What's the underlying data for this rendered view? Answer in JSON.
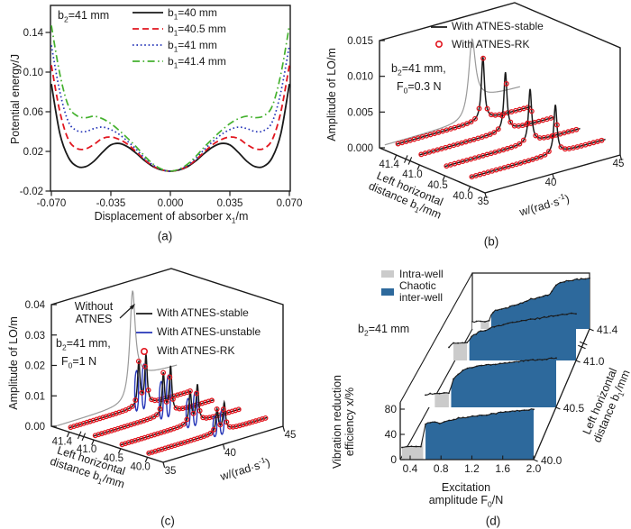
{
  "chart_data": {
    "type": [
      "line",
      "waterfall-3d",
      "waterfall-3d",
      "area-3d"
    ],
    "panels": {
      "a": {
        "label": "(a)",
        "annotation": "b_2_=41 mm",
        "y_title": "Potential energy/J",
        "x_title": "Displacement of absorber x_1_/m",
        "x_ticks": [
          "-0.070",
          "-0.035",
          "0.000",
          "0.035",
          "0.070"
        ],
        "x_tick_values": [
          -0.07,
          -0.035,
          0,
          0.035,
          0.07
        ],
        "y_ticks": [
          "-0.02",
          "0.02",
          "0.06",
          "0.10",
          "0.14"
        ],
        "y_tick_values": [
          -0.02,
          0.02,
          0.06,
          0.1,
          0.14
        ],
        "x_range": [
          -0.07,
          0.07
        ],
        "y_range": [
          -0.02,
          0.167
        ],
        "x_step": 0.005,
        "series": [
          {
            "label": "b_1_=40 mm",
            "color": "#1a1a1a",
            "dash": "",
            "width": 1.8,
            "half_values": [
              0,
              0.0012,
              0.0045,
              0.0105,
              0.018,
              0.0245,
              0.028,
              0.0265,
              0.019,
              0.01,
              0.0045,
              0.005,
              0.014,
              0.038,
              0.088
            ]
          },
          {
            "label": "b_1_=40.5 mm",
            "color": "#e1161f",
            "dash": "7 4",
            "width": 1.8,
            "half_values": [
              0,
              0.0014,
              0.005,
              0.0115,
              0.0195,
              0.027,
              0.032,
              0.0345,
              0.033,
              0.027,
              0.0225,
              0.023,
              0.032,
              0.06,
              0.107
            ]
          },
          {
            "label": "b_1_=41 mm",
            "color": "#2636b8",
            "dash": "1.6 2.8",
            "width": 1.7,
            "half_values": [
              0,
              0.0016,
              0.006,
              0.013,
              0.022,
              0.03,
              0.037,
              0.042,
              0.0445,
              0.043,
              0.04,
              0.041,
              0.05,
              0.08,
              0.127
            ]
          },
          {
            "label": "b_1_=41.4 mm",
            "color": "#44b12e",
            "dash": "8 3.5 1.6 3.5",
            "width": 1.7,
            "half_values": [
              0,
              0.002,
              0.007,
              0.015,
              0.0245,
              0.033,
              0.041,
              0.048,
              0.053,
              0.0555,
              0.054,
              0.056,
              0.066,
              0.098,
              0.147
            ]
          }
        ]
      },
      "b": {
        "label": "(b)",
        "annotation_lines": [
          "b_2_=41 mm,",
          "F_0_=0.3 N"
        ],
        "y_title": "Amplitude of LO/m",
        "x_title": "w/(rad·s^-1^)",
        "depth_title_lines": [
          "Left horizontal",
          "distance b_1_/mm"
        ],
        "y_ticks": [
          "0.000",
          "0.005",
          "0.010",
          "0.015"
        ],
        "y_tick_values": [
          0,
          0.005,
          0.01,
          0.015
        ],
        "w_ticks": [
          "35",
          "40",
          "45"
        ],
        "w_range": [
          35,
          45
        ],
        "b1_ticks": [
          "40.0",
          "40.5",
          "41.0",
          "41.4"
        ],
        "b1_tick_t": [
          0.14,
          0.38,
          0.62,
          0.84
        ],
        "legend": [
          {
            "label": "With ATNES-stable",
            "type": "line",
            "color": "#1a1a1a"
          },
          {
            "label": "With ATNES-RK",
            "type": "circle",
            "color": "#e1161f"
          }
        ],
        "marker_dw": 0.3,
        "gray_reference": {
          "t": 0.95,
          "w0": 41.45,
          "a": 0.01,
          "g": 0.3,
          "base": 0.0007,
          "tail": 0.0028,
          "color": "#999999"
        },
        "series": [
          {
            "b1": "40.0",
            "t": 0.14,
            "base": 0.0013,
            "peaks": [
              {
                "w0": 41.3,
                "a": 0.0068,
                "g": 0.14
              }
            ]
          },
          {
            "b1": "40.5",
            "t": 0.38,
            "base": 0.0013,
            "peaks": [
              {
                "w0": 41.3,
                "a": 0.0075,
                "g": 0.14
              }
            ]
          },
          {
            "b1": "41.0",
            "t": 0.62,
            "base": 0.0014,
            "peaks": [
              {
                "w0": 41.35,
                "a": 0.0082,
                "g": 0.14
              }
            ]
          },
          {
            "b1": "41.4",
            "t": 0.84,
            "base": 0.0015,
            "peaks": [
              {
                "w0": 41.4,
                "a": 0.0088,
                "g": 0.14
              }
            ]
          }
        ]
      },
      "c": {
        "label": "(c)",
        "annotation_lines": [
          "b_2_=41 mm,",
          "F_0_=1 N"
        ],
        "pointer_lines": [
          "Without",
          "ATNES"
        ],
        "y_title": "Amplitude of LO/m",
        "x_title": "w/(rad·s^-1^)",
        "depth_title_lines": [
          "Left horizontal",
          "distance b_1_/mm"
        ],
        "y_ticks": [
          "0.00",
          "0.01",
          "0.02",
          "0.03",
          "0.04"
        ],
        "y_tick_values": [
          0,
          0.01,
          0.02,
          0.03,
          0.04
        ],
        "w_ticks": [
          "35",
          "40",
          "45"
        ],
        "w_range": [
          35,
          45
        ],
        "b1_ticks": [
          "40.0",
          "40.5",
          "41.0",
          "41.4"
        ],
        "b1_tick_t": [
          0.14,
          0.38,
          0.62,
          0.84
        ],
        "legend": [
          {
            "label": "With ATNES-stable",
            "type": "line",
            "color": "#1a1a1a"
          },
          {
            "label": "With ATNES-unstable",
            "type": "line",
            "color": "#2636b8"
          },
          {
            "label": "With ATNES-RK",
            "type": "circle",
            "color": "#e1161f"
          }
        ],
        "marker_dw": 0.27,
        "loop_color": "#2636b8",
        "gray_reference": {
          "t": 0.95,
          "w0": 41.3,
          "a": 0.033,
          "g": 0.27,
          "base": 0.0007,
          "tail": 0.008,
          "color": "#999999"
        },
        "series": [
          {
            "b1": "40.0",
            "t": 0.14,
            "base": 0.0012,
            "peaks": [
              {
                "w0": 40.8,
                "a": 0.0075,
                "g": 0.12
              },
              {
                "w0": 41.4,
                "a": 0.009,
                "g": 0.12
              }
            ],
            "loops": [
              {
                "w0": 40.62,
                "a": 0.007
              },
              {
                "w0": 41.22,
                "a": 0.0085
              }
            ]
          },
          {
            "b1": "40.5",
            "t": 0.38,
            "base": 0.0012,
            "peaks": [
              {
                "w0": 40.8,
                "a": 0.0105,
                "g": 0.12
              },
              {
                "w0": 41.4,
                "a": 0.012,
                "g": 0.12
              }
            ],
            "loops": [
              {
                "w0": 40.62,
                "a": 0.01
              },
              {
                "w0": 41.22,
                "a": 0.0115
              }
            ]
          },
          {
            "b1": "41.0",
            "t": 0.62,
            "base": 0.0013,
            "peaks": [
              {
                "w0": 40.8,
                "a": 0.0135,
                "g": 0.12
              },
              {
                "w0": 41.4,
                "a": 0.015,
                "g": 0.12
              }
            ],
            "loops": [
              {
                "w0": 40.62,
                "a": 0.0128
              },
              {
                "w0": 41.22,
                "a": 0.0142
              }
            ]
          },
          {
            "b1": "41.4",
            "t": 0.84,
            "base": 0.0014,
            "peaks": [
              {
                "w0": 40.8,
                "a": 0.0145,
                "g": 0.12
              },
              {
                "w0": 41.4,
                "a": 0.016,
                "g": 0.12
              }
            ],
            "loops": [
              {
                "w0": 40.62,
                "a": 0.0138
              },
              {
                "w0": 41.22,
                "a": 0.0152
              }
            ]
          }
        ]
      },
      "d": {
        "label": "(d)",
        "annotation": "b_2_=41 mm",
        "y_title_lines": [
          "Vibration reduction",
          "efficiency x/%"
        ],
        "x_title_lines": [
          "Excitation",
          "amplitude F_0_/N"
        ],
        "depth_title_lines": [
          "Left horizontal",
          "distance b_1_/mm"
        ],
        "x_ticks": [
          "0.4",
          "0.8",
          "1.2",
          "1.6",
          "2.0"
        ],
        "x_tick_values": [
          0.4,
          0.8,
          1.2,
          1.6,
          2.0
        ],
        "y_ticks": [
          "0",
          "40",
          "80"
        ],
        "y_tick_values": [
          0,
          40,
          80
        ],
        "b1_ticks": [
          "40.0",
          "40.5",
          "41.0",
          "41.4"
        ],
        "f0_range": [
          0.3,
          2.0
        ],
        "legend": [
          {
            "label": "Intra-well",
            "color": "#cbcbcb"
          },
          {
            "label": "Chaotic inter-well",
            "color": "#2d699c"
          }
        ],
        "colors": {
          "intra": "#cbcbcb",
          "inter": "#2d699c"
        },
        "series": [
          {
            "b1": "40.0",
            "gray_span": [
              0.3,
              0.575
            ],
            "anchors": [
              [
                0.3,
                20
              ],
              [
                0.555,
                21
              ],
              [
                0.575,
                40
              ],
              [
                0.6,
                57
              ],
              [
                0.7,
                60
              ],
              [
                0.78,
                57
              ],
              [
                1.0,
                65
              ],
              [
                1.3,
                70
              ],
              [
                1.6,
                75
              ],
              [
                2.0,
                80
              ]
            ]
          },
          {
            "b1": "40.5",
            "gray_span": [
              0.4,
              0.625
            ],
            "anchors": [
              [
                0.3,
                20
              ],
              [
                0.4,
                22
              ],
              [
                0.615,
                23
              ],
              [
                0.635,
                33
              ],
              [
                0.66,
                44
              ],
              [
                0.72,
                52
              ],
              [
                0.82,
                61
              ],
              [
                1.0,
                66
              ],
              [
                1.3,
                70
              ],
              [
                1.6,
                74
              ],
              [
                2.0,
                78
              ]
            ]
          },
          {
            "b1": "41.0",
            "gray_span": [
              0.34,
              0.57
            ],
            "anchors": [
              [
                0.3,
                21
              ],
              [
                0.34,
                27
              ],
              [
                0.56,
                28
              ],
              [
                0.58,
                36
              ],
              [
                0.7,
                45
              ],
              [
                0.9,
                53
              ],
              [
                1.1,
                59
              ],
              [
                1.4,
                65
              ],
              [
                1.7,
                71
              ],
              [
                2.0,
                75
              ]
            ]
          },
          {
            "b1": "41.4",
            "gray_span": [
              0.42,
              0.55
            ],
            "anchors": [
              [
                0.3,
                11
              ],
              [
                0.42,
                12
              ],
              [
                0.54,
                12
              ],
              [
                0.57,
                21
              ],
              [
                0.62,
                29
              ],
              [
                0.8,
                33
              ],
              [
                0.95,
                39
              ],
              [
                1.15,
                47
              ],
              [
                1.35,
                52
              ],
              [
                1.44,
                56
              ],
              [
                1.5,
                69
              ],
              [
                1.62,
                75
              ],
              [
                1.8,
                78
              ],
              [
                2.0,
                80
              ]
            ]
          }
        ]
      }
    }
  }
}
